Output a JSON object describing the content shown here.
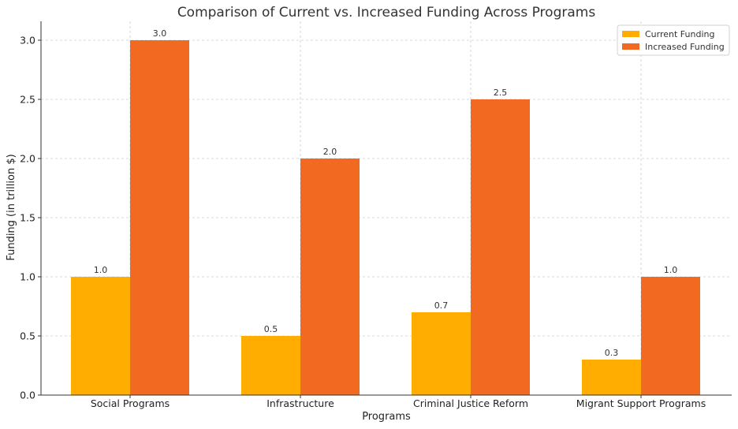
{
  "chart_data": {
    "type": "bar",
    "title": "Comparison of Current vs. Increased Funding Across Programs",
    "xlabel": "Programs",
    "ylabel": "Funding (in trillion $)",
    "categories": [
      "Social Programs",
      "Infrastructure",
      "Criminal Justice Reform",
      "Migrant Support Programs"
    ],
    "series": [
      {
        "name": "Current Funding",
        "values": [
          1.0,
          0.5,
          0.7,
          0.3
        ],
        "color": "#FFAD00"
      },
      {
        "name": "Increased Funding",
        "values": [
          3.0,
          2.0,
          2.5,
          1.0
        ],
        "color": "#F26A21"
      }
    ],
    "ylim": [
      0,
      3.0
    ],
    "yticks": [
      0.0,
      0.5,
      1.0,
      1.5,
      2.0,
      2.5,
      3.0
    ],
    "grid": true,
    "legend": "top-right"
  }
}
